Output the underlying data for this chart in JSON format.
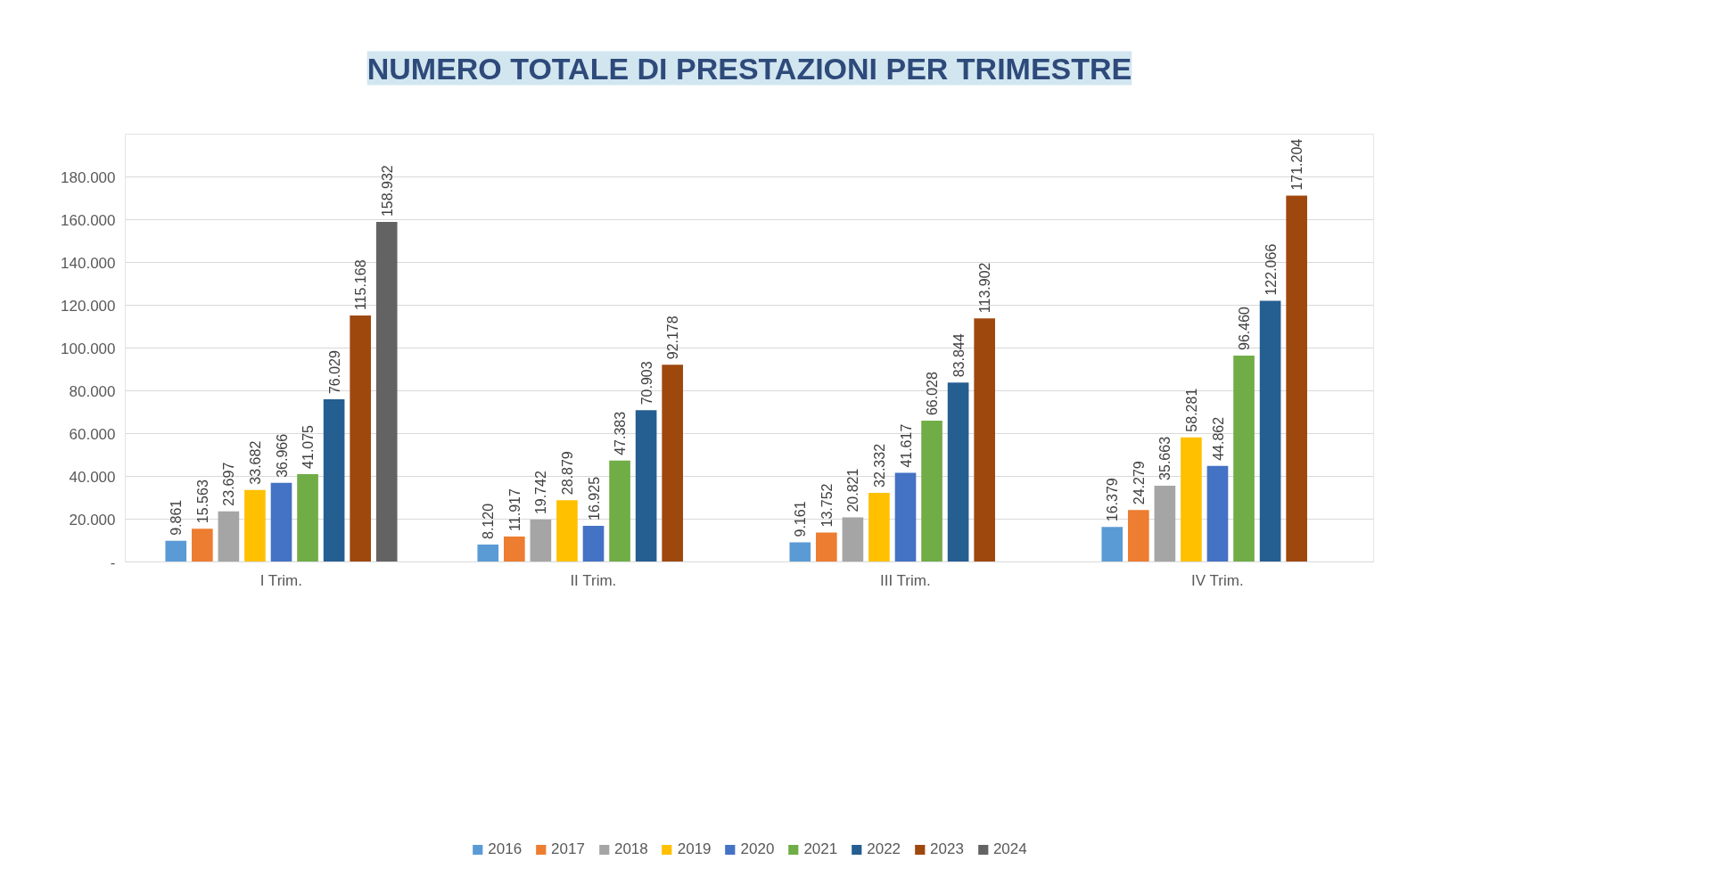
{
  "chart_data": {
    "type": "bar",
    "title": "NUMERO TOTALE DI PRESTAZIONI PER TRIMESTRE",
    "categories": [
      "I Trim.",
      "II Trim.",
      "III Trim.",
      "IV Trim."
    ],
    "series": [
      {
        "name": "2016",
        "color": "#5b9bd5",
        "values": [
          9861,
          8120,
          9161,
          16379
        ],
        "value_labels": [
          "9.861",
          "8.120",
          "9.161",
          "16.379"
        ]
      },
      {
        "name": "2017",
        "color": "#ed7d31",
        "values": [
          15563,
          11917,
          13752,
          24279
        ],
        "value_labels": [
          "15.563",
          "11.917",
          "13.752",
          "24.279"
        ]
      },
      {
        "name": "2018",
        "color": "#a5a5a5",
        "values": [
          23697,
          19742,
          20821,
          35663
        ],
        "value_labels": [
          "23.697",
          "19.742",
          "20.821",
          "35.663"
        ]
      },
      {
        "name": "2019",
        "color": "#ffc000",
        "values": [
          33682,
          28879,
          32332,
          58281
        ],
        "value_labels": [
          "33.682",
          "28.879",
          "32.332",
          "58.281"
        ]
      },
      {
        "name": "2020",
        "color": "#4472c4",
        "values": [
          36966,
          16925,
          41617,
          44862
        ],
        "value_labels": [
          "36.966",
          "16.925",
          "41.617",
          "44.862"
        ]
      },
      {
        "name": "2021",
        "color": "#70ad47",
        "values": [
          41075,
          47383,
          66028,
          96460
        ],
        "value_labels": [
          "41.075",
          "47.383",
          "66.028",
          "96.460"
        ]
      },
      {
        "name": "2022",
        "color": "#255e91",
        "values": [
          76029,
          70903,
          83844,
          122066
        ],
        "value_labels": [
          "76.029",
          "70.903",
          "83.844",
          "122.066"
        ]
      },
      {
        "name": "2023",
        "color": "#9e480e",
        "values": [
          115168,
          92178,
          113902,
          171204
        ],
        "value_labels": [
          "115.168",
          "92.178",
          "113.902",
          "171.204"
        ]
      },
      {
        "name": "2024",
        "color": "#636363",
        "values": [
          158932,
          null,
          null,
          null
        ],
        "value_labels": [
          "158.932",
          null,
          null,
          null
        ]
      }
    ],
    "ylim": [
      0,
      200000
    ],
    "yticks": [
      {
        "value": 0,
        "label": "-"
      },
      {
        "value": 20000,
        "label": "20.000"
      },
      {
        "value": 40000,
        "label": "40.000"
      },
      {
        "value": 60000,
        "label": "60.000"
      },
      {
        "value": 80000,
        "label": "80.000"
      },
      {
        "value": 100000,
        "label": "100.000"
      },
      {
        "value": 120000,
        "label": "120.000"
      },
      {
        "value": 140000,
        "label": "140.000"
      },
      {
        "value": 160000,
        "label": "160.000"
      },
      {
        "value": 180000,
        "label": "180.000"
      }
    ],
    "grid": "y",
    "legend": "bottom"
  }
}
